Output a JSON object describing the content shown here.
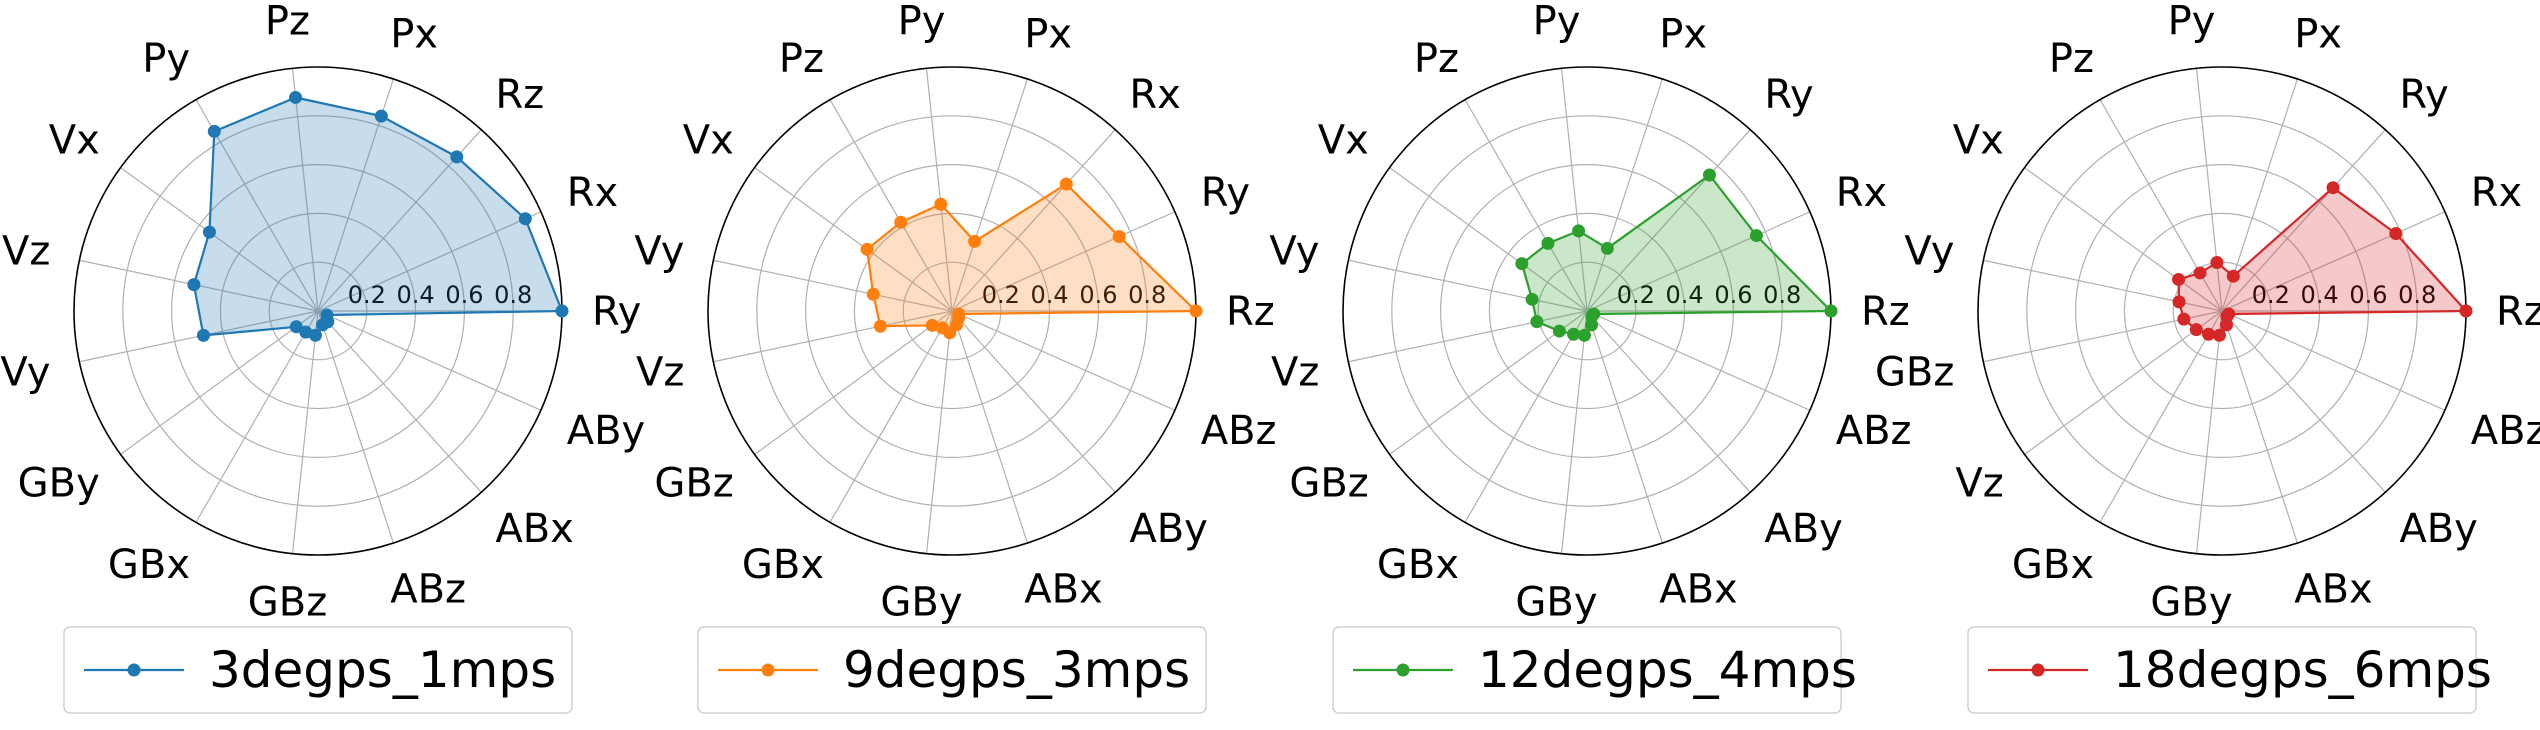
{
  "chart_data": [
    {
      "type": "radar",
      "series_name": "3degps_1mps",
      "color": "#1f77b4",
      "axes": [
        "Ry",
        "Rx",
        "Rz",
        "Px",
        "Pz",
        "Py",
        "Vx",
        "Vz",
        "Vy",
        "GBy",
        "GBx",
        "GBz",
        "ABz",
        "ABx",
        "ABy"
      ],
      "values": [
        1.0,
        0.93,
        0.85,
        0.84,
        0.88,
        0.85,
        0.55,
        0.52,
        0.48,
        0.11,
        0.1,
        0.1,
        0.06,
        0.06,
        0.04
      ],
      "rticks": [
        "0.2",
        "0.4",
        "0.6",
        "0.8"
      ],
      "rlim": [
        0,
        1
      ]
    },
    {
      "type": "radar",
      "series_name": "9degps_3mps",
      "color": "#ff7f0e",
      "axes": [
        "Rz",
        "Ry",
        "Rx",
        "Px",
        "Py",
        "Pz",
        "Vx",
        "Vy",
        "Vz",
        "GBz",
        "GBx",
        "GBy",
        "ABx",
        "ABy",
        "ABz"
      ],
      "values": [
        1.0,
        0.75,
        0.7,
        0.3,
        0.44,
        0.42,
        0.43,
        0.33,
        0.3,
        0.1,
        0.08,
        0.09,
        0.06,
        0.04,
        0.03
      ],
      "rticks": [
        "0.2",
        "0.4",
        "0.6",
        "0.8"
      ],
      "rlim": [
        0,
        1
      ]
    },
    {
      "type": "radar",
      "series_name": "12degps_4mps",
      "color": "#2ca02c",
      "axes": [
        "Rz",
        "Rx",
        "Ry",
        "Px",
        "Py",
        "Pz",
        "Vx",
        "Vy",
        "Vz",
        "GBz",
        "GBx",
        "GBy",
        "ABx",
        "ABy",
        "ABz"
      ],
      "values": [
        1.0,
        0.76,
        0.75,
        0.27,
        0.33,
        0.32,
        0.33,
        0.23,
        0.21,
        0.14,
        0.11,
        0.1,
        0.06,
        0.03,
        0.03
      ],
      "rticks": [
        "0.2",
        "0.4",
        "0.6",
        "0.8"
      ],
      "rlim": [
        0,
        1
      ]
    },
    {
      "type": "radar",
      "series_name": "18degps_6mps",
      "color": "#d62728",
      "axes": [
        "Rz",
        "Rx",
        "Ry",
        "Px",
        "Py",
        "Pz",
        "Vx",
        "Vy",
        "GBz",
        "Vz",
        "GBx",
        "GBy",
        "ABx",
        "ABy",
        "ABz"
      ],
      "values": [
        1.0,
        0.78,
        0.68,
        0.15,
        0.2,
        0.18,
        0.22,
        0.18,
        0.16,
        0.13,
        0.11,
        0.1,
        0.06,
        0.03,
        0.03
      ],
      "rticks": [
        "0.2",
        "0.4",
        "0.6",
        "0.8"
      ],
      "rlim": [
        0,
        1
      ]
    }
  ]
}
